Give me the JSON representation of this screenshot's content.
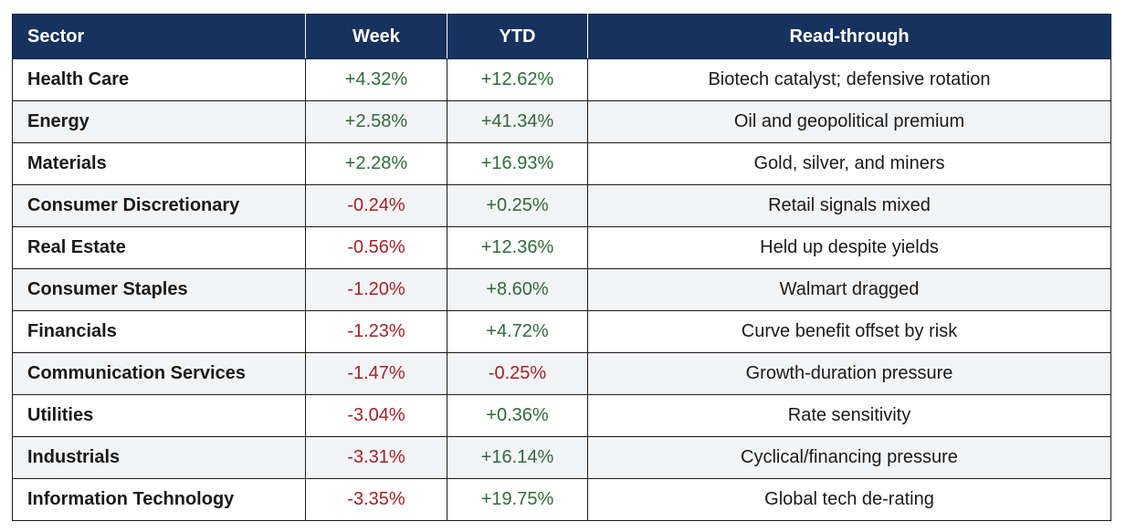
{
  "table": {
    "headers": {
      "sector": "Sector",
      "week": "Week",
      "ytd": "YTD",
      "read": "Read-through"
    },
    "colors": {
      "header_bg": "#17325e",
      "positive": "#2f6b3a",
      "negative": "#a32226"
    },
    "rows": [
      {
        "sector": "Health Care",
        "week": "+4.32%",
        "ytd": "+12.62%",
        "read": "Biotech catalyst; defensive rotation"
      },
      {
        "sector": "Energy",
        "week": "+2.58%",
        "ytd": "+41.34%",
        "read": "Oil and geopolitical premium"
      },
      {
        "sector": "Materials",
        "week": "+2.28%",
        "ytd": "+16.93%",
        "read": "Gold, silver, and miners"
      },
      {
        "sector": "Consumer Discretionary",
        "week": "-0.24%",
        "ytd": "+0.25%",
        "read": "Retail signals mixed"
      },
      {
        "sector": "Real Estate",
        "week": "-0.56%",
        "ytd": "+12.36%",
        "read": "Held up despite yields"
      },
      {
        "sector": "Consumer Staples",
        "week": "-1.20%",
        "ytd": "+8.60%",
        "read": "Walmart dragged"
      },
      {
        "sector": "Financials",
        "week": "-1.23%",
        "ytd": "+4.72%",
        "read": "Curve benefit offset by risk"
      },
      {
        "sector": "Communication Services",
        "week": "-1.47%",
        "ytd": "-0.25%",
        "read": "Growth-duration pressure"
      },
      {
        "sector": "Utilities",
        "week": "-3.04%",
        "ytd": "+0.36%",
        "read": "Rate sensitivity"
      },
      {
        "sector": "Industrials",
        "week": "-3.31%",
        "ytd": "+16.14%",
        "read": "Cyclical/financing pressure"
      },
      {
        "sector": "Information Technology",
        "week": "-3.35%",
        "ytd": "+19.75%",
        "read": "Global tech de-rating"
      }
    ]
  }
}
